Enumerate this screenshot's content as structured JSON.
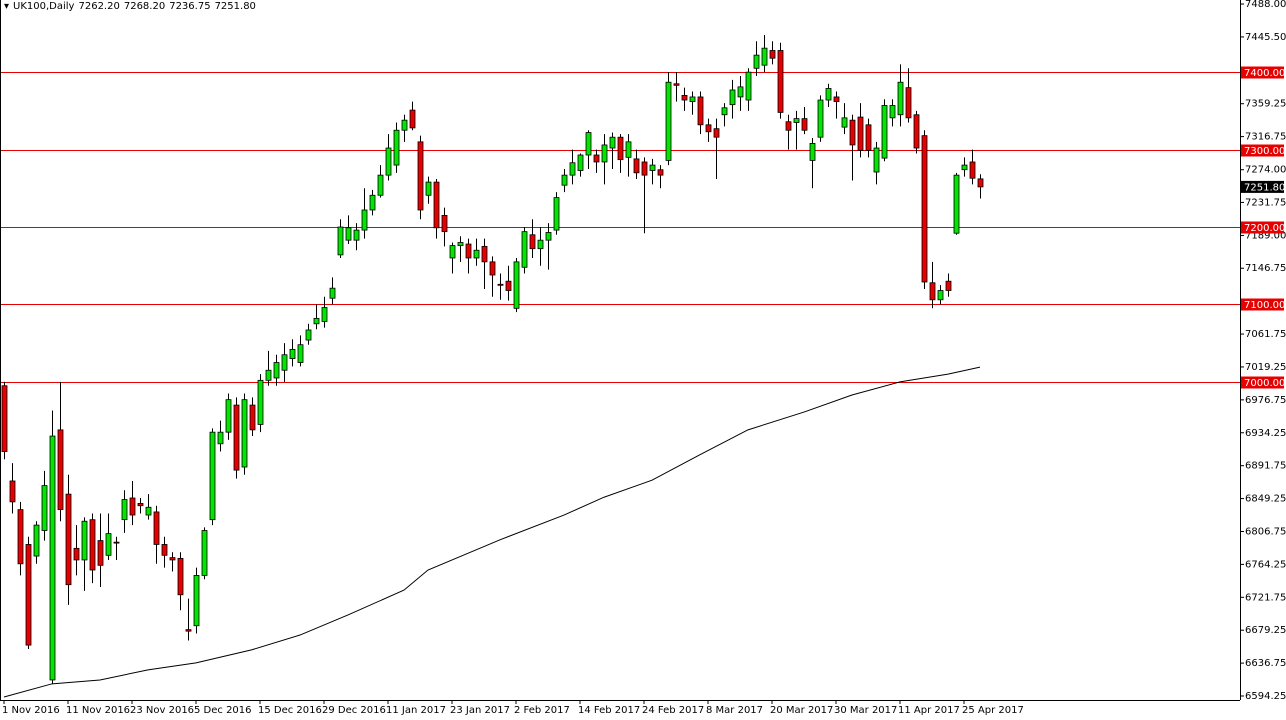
{
  "chart_data": {
    "type": "candlestick",
    "title": "UK100,Daily",
    "header_labels": [
      "7262.20",
      "7268.20",
      "7236.75",
      "7251.80"
    ],
    "open": [
      6995,
      6872,
      6835,
      6790,
      6775,
      6808,
      6615,
      6938,
      6855,
      6785,
      6770,
      6822,
      6795,
      6776,
      6793,
      6822,
      6850,
      6843,
      6828,
      6832,
      6790,
      6773,
      6772,
      6680,
      6685,
      6750,
      6822,
      6920,
      6935,
      6970,
      6890,
      6970,
      6945,
      7002,
      7005,
      7015,
      7030,
      7025,
      7054,
      7075,
      7078,
      7108,
      7164,
      7183,
      7183,
      7196,
      7222,
      7241,
      7267,
      7280,
      7325,
      7351,
      7310,
      7241,
      7258,
      7215,
      7160,
      7176,
      7178,
      7160,
      7175,
      7155,
      7126,
      7130,
      7095,
      7148,
      7190,
      7172,
      7183,
      7196,
      7254,
      7267,
      7273,
      7293,
      7293,
      7284,
      7302,
      7316,
      7290,
      7288,
      7284,
      7273,
      7274,
      7286,
      7385,
      7370,
      7362,
      7368,
      7332,
      7327,
      7345,
      7358,
      7368,
      7364,
      7405,
      7409,
      7428,
      7428,
      7336,
      7335,
      7340,
      7286,
      7316,
      7364,
      7368,
      7329,
      7338,
      7342,
      7332,
      7271,
      7289,
      7341,
      7345,
      7380,
      7345,
      7318,
      7128,
      7106,
      7130,
      7192,
      7274,
      7284,
      7262.2
    ],
    "high": [
      7000,
      6895,
      6845,
      6800,
      6820,
      6885,
      6963,
      7000,
      6880,
      6815,
      6825,
      6830,
      6830,
      6830,
      6800,
      6860,
      6872,
      6850,
      6855,
      6840,
      6800,
      6780,
      6780,
      6720,
      6760,
      6812,
      6940,
      6950,
      6985,
      6980,
      6985,
      6980,
      7010,
      7040,
      7035,
      7050,
      7055,
      7060,
      7075,
      7100,
      7110,
      7135,
      7210,
      7215,
      7205,
      7250,
      7248,
      7280,
      7320,
      7335,
      7345,
      7362,
      7318,
      7265,
      7262,
      7225,
      7180,
      7188,
      7185,
      7185,
      7185,
      7162,
      7140,
      7150,
      7160,
      7200,
      7210,
      7200,
      7205,
      7245,
      7275,
      7300,
      7295,
      7325,
      7300,
      7320,
      7322,
      7320,
      7320,
      7300,
      7290,
      7288,
      7280,
      7400,
      7400,
      7380,
      7375,
      7375,
      7340,
      7340,
      7360,
      7390,
      7395,
      7405,
      7440,
      7448,
      7440,
      7438,
      7345,
      7350,
      7355,
      7315,
      7370,
      7385,
      7375,
      7360,
      7345,
      7360,
      7340,
      7310,
      7365,
      7365,
      7410,
      7405,
      7350,
      7325,
      7155,
      7125,
      7140,
      7270,
      7290,
      7300,
      7268.2
    ],
    "low": [
      6900,
      6830,
      6750,
      6655,
      6765,
      6795,
      6610,
      6820,
      6712,
      6750,
      6730,
      6740,
      6735,
      6770,
      6770,
      6805,
      6815,
      6830,
      6822,
      6765,
      6760,
      6755,
      6705,
      6666,
      6675,
      6745,
      6815,
      6910,
      6925,
      6875,
      6880,
      6930,
      6935,
      6995,
      6995,
      7000,
      7020,
      7020,
      7048,
      7068,
      7070,
      7100,
      7160,
      7178,
      7170,
      7185,
      7215,
      7238,
      7260,
      7270,
      7310,
      7325,
      7210,
      7230,
      7185,
      7175,
      7140,
      7155,
      7140,
      7150,
      7120,
      7110,
      7106,
      7105,
      7090,
      7140,
      7160,
      7150,
      7145,
      7190,
      7245,
      7255,
      7265,
      7275,
      7270,
      7255,
      7275,
      7270,
      7265,
      7262,
      7192,
      7255,
      7250,
      7280,
      7362,
      7350,
      7345,
      7320,
      7310,
      7262,
      7330,
      7340,
      7350,
      7350,
      7395,
      7400,
      7410,
      7340,
      7300,
      7300,
      7320,
      7250,
      7310,
      7355,
      7340,
      7320,
      7260,
      7290,
      7290,
      7255,
      7285,
      7330,
      7330,
      7335,
      7295,
      7120,
      7095,
      7100,
      7110,
      7190,
      7265,
      7255,
      7236.75
    ],
    "close": [
      6910,
      6845,
      6765,
      6660,
      6815,
      6866,
      6930,
      6835,
      6738,
      6770,
      6820,
      6757,
      6763,
      6804,
      6792,
      6848,
      6828,
      6840,
      6838,
      6790,
      6776,
      6770,
      6725,
      6678,
      6750,
      6808,
      6935,
      6935,
      6977,
      6886,
      6977,
      6938,
      7002,
      7015,
      7025,
      7035,
      7042,
      7048,
      7067,
      7082,
      7096,
      7121,
      7200,
      7199,
      7196,
      7222,
      7241,
      7267,
      7302,
      7325,
      7338,
      7328,
      7222,
      7258,
      7199,
      7194,
      7176,
      7180,
      7160,
      7170,
      7155,
      7138,
      7125,
      7118,
      7155,
      7194,
      7172,
      7183,
      7193,
      7238,
      7267,
      7283,
      7293,
      7322,
      7284,
      7306,
      7316,
      7287,
      7310,
      7270,
      7267,
      7280,
      7267,
      7387,
      7383,
      7364,
      7368,
      7332,
      7323,
      7316,
      7354,
      7377,
      7381,
      7400,
      7422,
      7431,
      7418,
      7348,
      7325,
      7340,
      7325,
      7308,
      7364,
      7379,
      7362,
      7341,
      7306,
      7299,
      7299,
      7302,
      7357,
      7357,
      7387,
      7341,
      7302,
      7129,
      7106,
      7118,
      7118,
      7267,
      7280,
      7263,
      7251.8
    ],
    "up_color": "#00e600",
    "down_color": "#e60000",
    "ma": {
      "x": [
        0,
        6,
        12,
        18,
        24,
        31,
        37,
        43,
        50,
        53,
        62,
        70,
        75,
        81,
        87,
        93,
        100,
        106,
        112,
        118,
        122
      ],
      "values": [
        6593,
        6610,
        6615,
        6628,
        6637,
        6654,
        6673,
        6699,
        6731,
        6757,
        6796,
        6828,
        6851,
        6873,
        6906,
        6938,
        6961,
        6983,
        7000,
        7010,
        7019
      ],
      "color": "#000000"
    },
    "levels": [
      {
        "value": 7400,
        "label": "7400.00"
      },
      {
        "value": 7300,
        "label": "7300.00"
      },
      {
        "value": 7200,
        "label": "7200.00"
      },
      {
        "value": 7100,
        "label": "7100.00"
      },
      {
        "value": 7000,
        "label": "7000.00"
      }
    ],
    "level_color": "#e60000",
    "ylim": [
      6589.1,
      7493.2
    ],
    "yticks": [
      {
        "value": 7488,
        "label": "7488.00"
      },
      {
        "value": 7445.5,
        "label": "7445.50"
      },
      {
        "value": 7359.25,
        "label": "7359.25"
      },
      {
        "value": 7316.75,
        "label": "7316.75"
      },
      {
        "value": 7274,
        "label": "7274.00"
      },
      {
        "value": 7231.75,
        "label": "7231.75"
      },
      {
        "value": 7189,
        "label": "7189.00"
      },
      {
        "value": 7146.75,
        "label": "7146.75"
      },
      {
        "value": 7061.75,
        "label": "7061.75"
      },
      {
        "value": 7019.25,
        "label": "7019.25"
      },
      {
        "value": 6976.75,
        "label": "6976.75"
      },
      {
        "value": 6934.25,
        "label": "6934.25"
      },
      {
        "value": 6891.75,
        "label": "6891.75"
      },
      {
        "value": 6849.25,
        "label": "6849.25"
      },
      {
        "value": 6806.75,
        "label": "6806.75"
      },
      {
        "value": 6764.25,
        "label": "6764.25"
      },
      {
        "value": 6721.75,
        "label": "6721.75"
      },
      {
        "value": 6679.25,
        "label": "6679.25"
      },
      {
        "value": 6636.75,
        "label": "6636.75"
      },
      {
        "value": 6594.25,
        "label": "6594.25"
      }
    ],
    "xticks": [
      {
        "value": 0,
        "label": "1 Nov 2016"
      },
      {
        "value": 8,
        "label": "11 Nov 2016"
      },
      {
        "value": 16,
        "label": "23 Nov 2016"
      },
      {
        "value": 24,
        "label": "5 Dec 2016"
      },
      {
        "value": 32,
        "label": "15 Dec 2016"
      },
      {
        "value": 40,
        "label": "29 Dec 2016"
      },
      {
        "value": 48,
        "label": "11 Jan 2017"
      },
      {
        "value": 56,
        "label": "23 Jan 2017"
      },
      {
        "value": 64,
        "label": "2 Feb 2017"
      },
      {
        "value": 72,
        "label": "14 Feb 2017"
      },
      {
        "value": 80,
        "label": "24 Feb 2017"
      },
      {
        "value": 88,
        "label": "8 Mar 2017"
      },
      {
        "value": 96,
        "label": "20 Mar 2017"
      },
      {
        "value": 104,
        "label": "30 Mar 2017"
      },
      {
        "value": 112,
        "label": "11 Apr 2017"
      },
      {
        "value": 120,
        "label": "25 Apr 2017"
      }
    ]
  }
}
